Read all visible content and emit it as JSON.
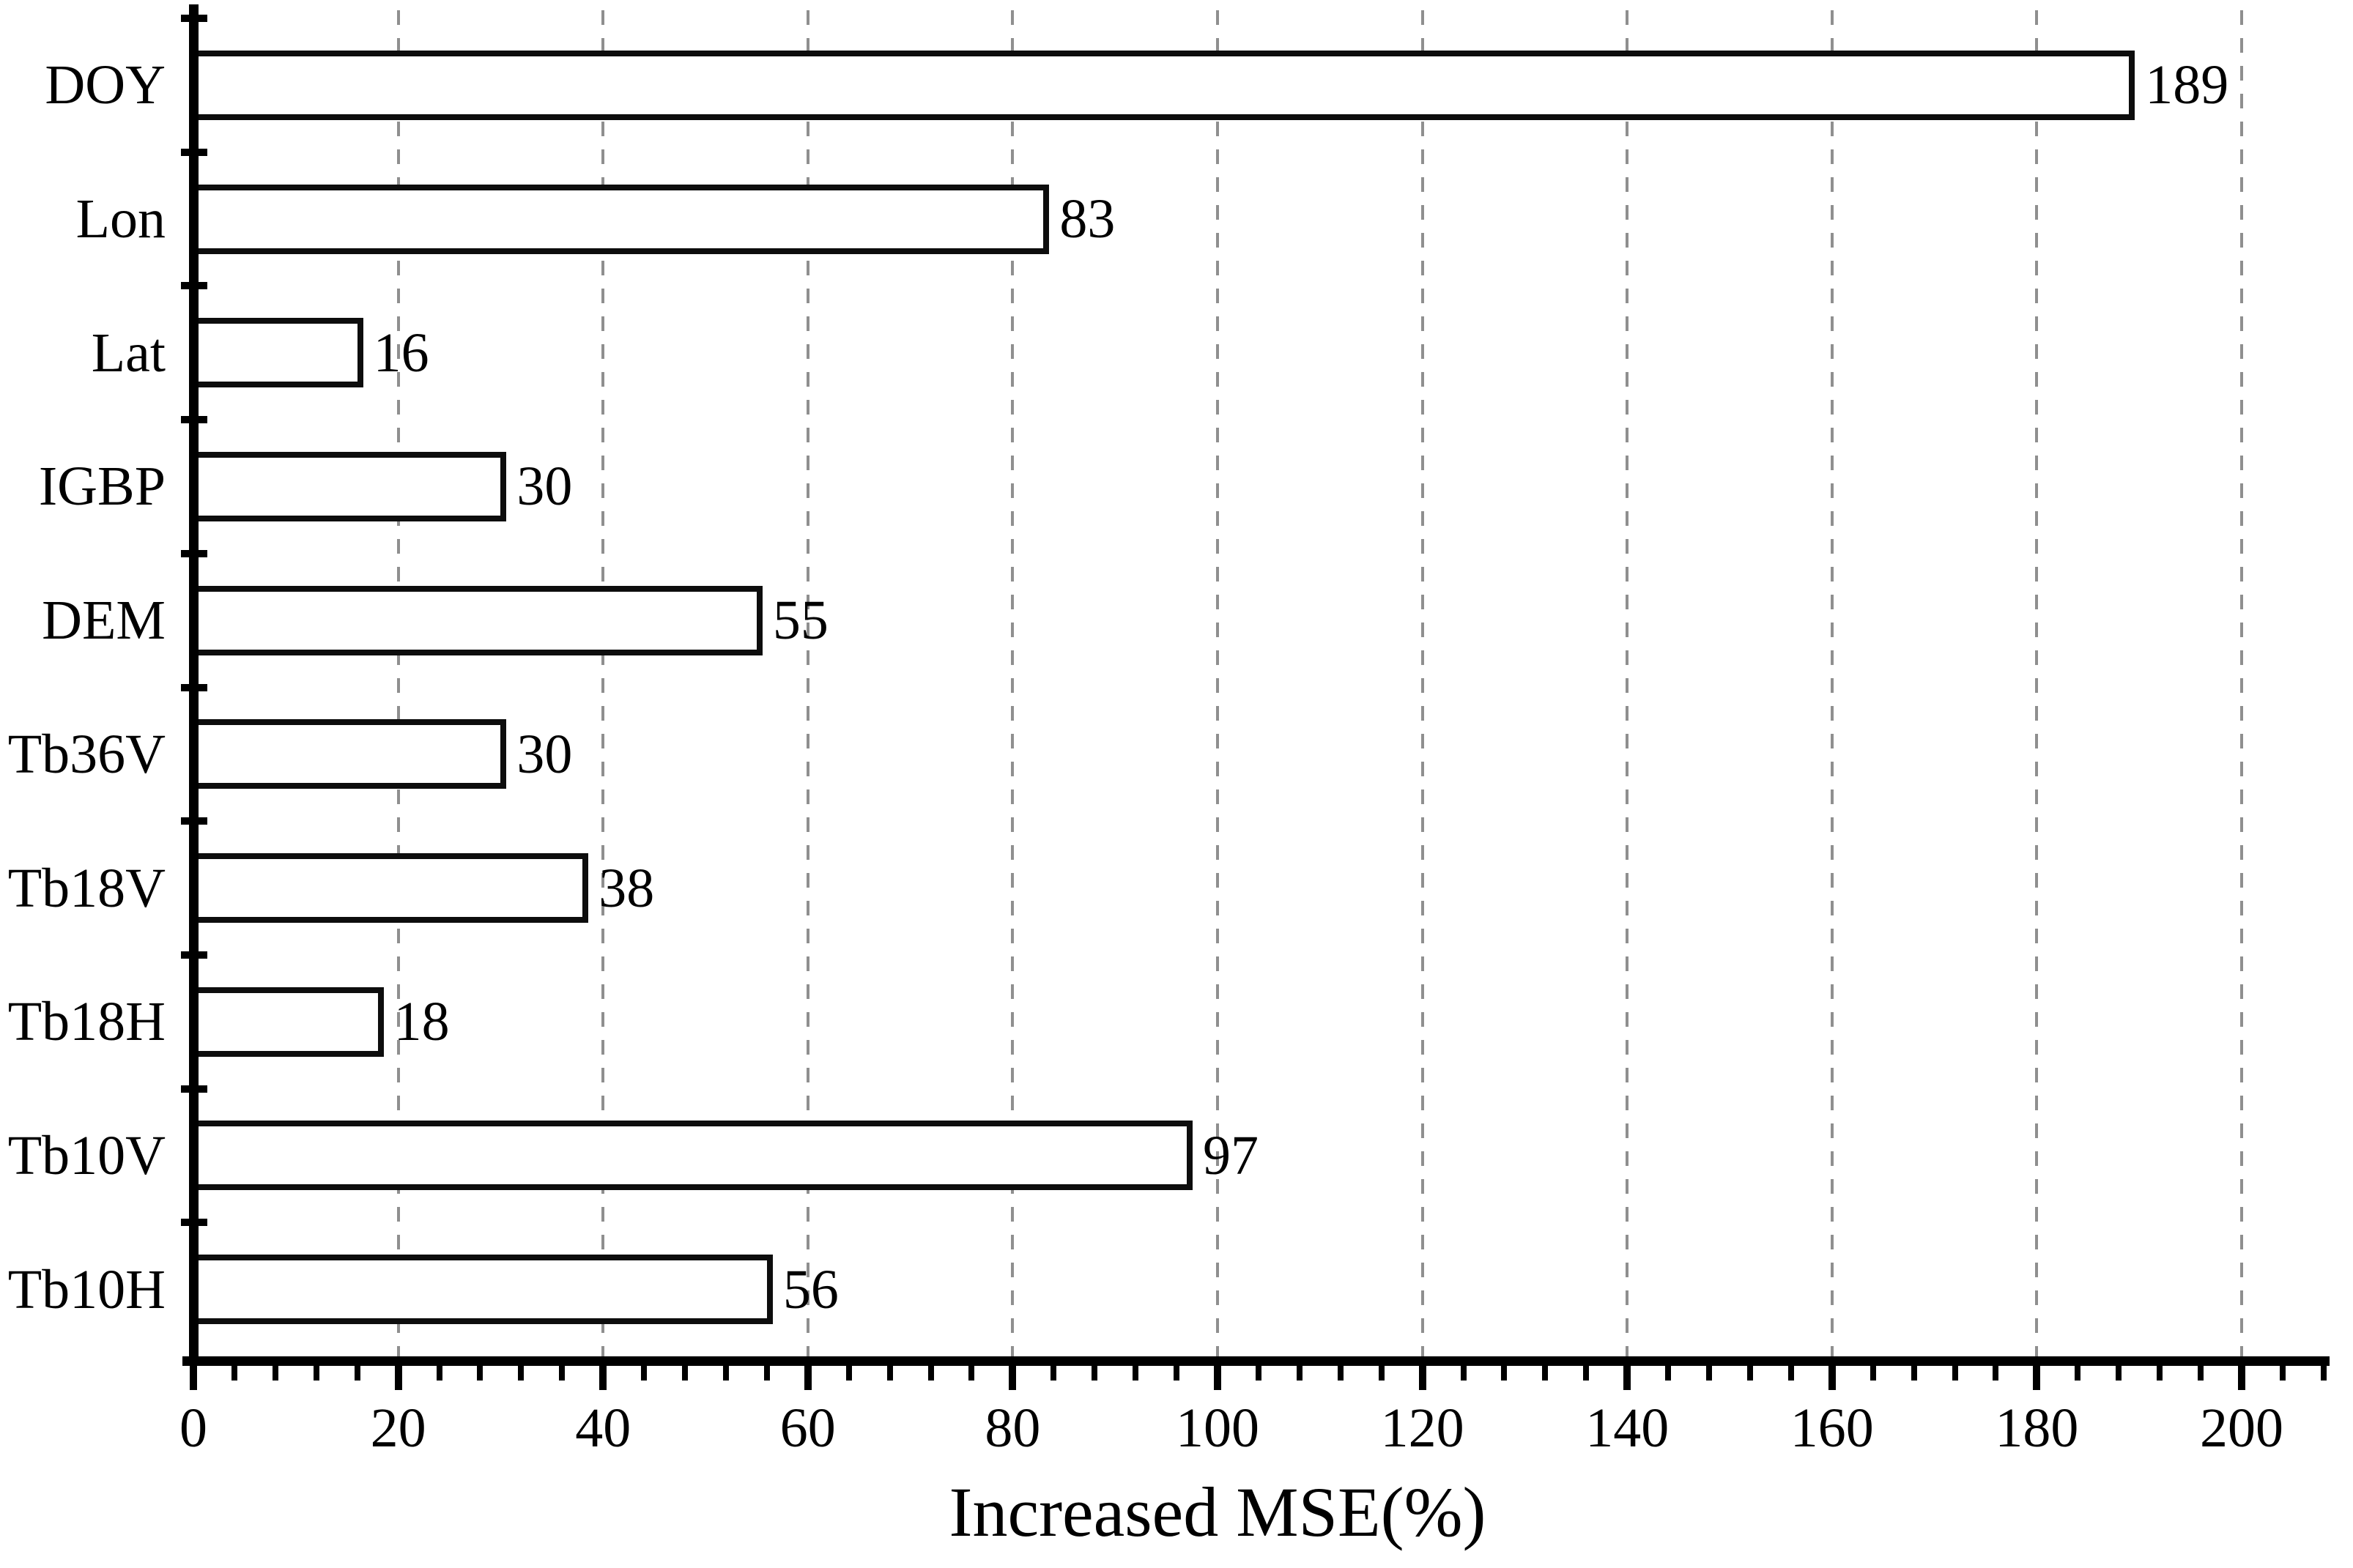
{
  "chart_data": {
    "type": "bar",
    "orientation": "horizontal",
    "title": "",
    "xlabel": "Increased MSE(%)",
    "ylabel": "",
    "categories": [
      "DOY",
      "Lon",
      "Lat",
      "IGBP",
      "DEM",
      "Tb36V",
      "Tb18V",
      "Tb18H",
      "Tb10V",
      "Tb10H"
    ],
    "values": [
      189,
      83,
      16,
      30,
      55,
      30,
      38,
      18,
      97,
      56
    ],
    "xlim": [
      0,
      209
    ],
    "x_major_ticks": [
      0,
      20,
      40,
      60,
      80,
      100,
      120,
      140,
      160,
      180,
      200
    ],
    "x_minor_tick_step": 4,
    "grid": "dashed vertical gridlines at major ticks",
    "legend_position": "none",
    "bar_value_labels_shown": true,
    "colors": {
      "background": "#ffffff",
      "bar_fill": "#ffffff",
      "bar_border": "#0d0d0d",
      "axis": "#000000",
      "gridline": "#8f8f8f",
      "text": "#000000"
    }
  }
}
